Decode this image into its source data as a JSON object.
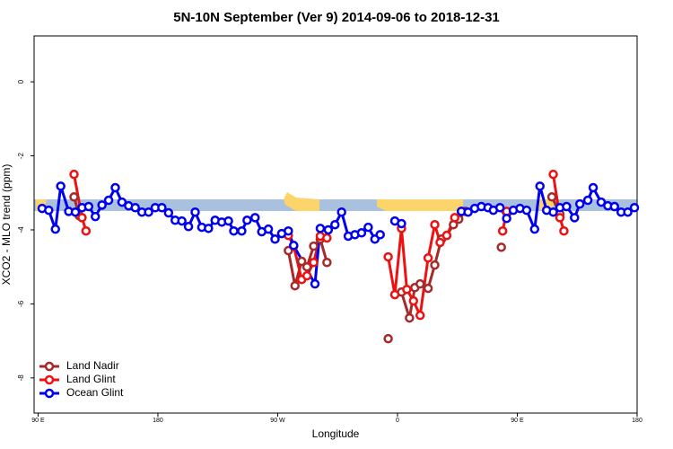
{
  "chart_data": {
    "type": "line",
    "title": "5N-10N September (Ver 9)   2014-09-06 to 2018-12-31",
    "xlabel": "Longitude",
    "ylabel": "XCO2 - MLO trend (ppm)",
    "xlim": [
      87,
      540
    ],
    "ylim": [
      -8.95,
      1.24
    ],
    "xticks": [
      {
        "value": 90,
        "label": "90 E"
      },
      180,
      {
        "value": 270,
        "label": "90 W"
      },
      {
        "value": 360,
        "label": "0"
      },
      {
        "value": 450,
        "label": "90 E"
      },
      {
        "value": 540,
        "label": "180"
      }
    ],
    "yticks": [
      0,
      -2,
      -4,
      -6,
      -8
    ],
    "legend": "bottomleft",
    "series": [
      {
        "name": "Land Nadir",
        "color": "#a52a2a",
        "x": [
          117,
          121,
          null,
          278,
          283,
          288,
          292,
          297,
          302,
          307,
          null,
          353,
          null,
          363,
          369,
          373,
          377,
          383,
          388,
          393,
          397,
          402,
          406,
          411,
          null,
          438,
          null,
          476,
          482
        ],
        "values": [
          -3.11,
          -3.62,
          null,
          -4.56,
          -5.51,
          -4.85,
          -5.0,
          -4.44,
          -4.25,
          -4.88,
          null,
          -6.94,
          null,
          -5.68,
          -6.38,
          -5.56,
          -5.46,
          -5.58,
          -4.95,
          -4.25,
          -4.15,
          -3.86,
          -3.71,
          -3.5,
          null,
          -4.47,
          null,
          -3.11,
          -3.57
        ]
      },
      {
        "name": "Land Glint",
        "color": "#ee1111",
        "x": [
          117,
          123,
          126,
          null,
          278,
          282,
          288,
          292,
          297,
          302,
          307,
          null,
          353,
          358,
          363,
          367,
          372,
          377,
          383,
          388,
          392,
          397,
          403,
          408,
          null,
          439,
          442,
          null,
          477,
          482,
          485
        ],
        "values": [
          -2.5,
          -3.67,
          -4.03,
          null,
          -4.15,
          -4.44,
          -5.34,
          -5.24,
          -4.88,
          -4.17,
          -4.22,
          null,
          -4.73,
          -5.75,
          -3.96,
          -5.61,
          -5.92,
          -6.31,
          -4.76,
          -3.86,
          -4.34,
          -4.15,
          -3.67,
          -3.5,
          null,
          -4.03,
          -3.5,
          null,
          -2.5,
          -3.67,
          -4.03
        ]
      },
      {
        "name": "Ocean Glint",
        "color": "#0000ee",
        "x": [
          93,
          98,
          103,
          107,
          113,
          118,
          123,
          128,
          133,
          138,
          143,
          148,
          153,
          158,
          163,
          168,
          173,
          178,
          183,
          188,
          193,
          198,
          203,
          208,
          213,
          218,
          223,
          228,
          233,
          237,
          243,
          247,
          253,
          258,
          263,
          268,
          273,
          278,
          282,
          298,
          302,
          308,
          313,
          318,
          323,
          328,
          333,
          338,
          343,
          347,
          null,
          358,
          363,
          null,
          408,
          413,
          418,
          423,
          428,
          432,
          437,
          442,
          447,
          452,
          457,
          463,
          467,
          472,
          477,
          482,
          487,
          493,
          497,
          503,
          507,
          513,
          518,
          523,
          528,
          533,
          538
        ],
        "values": [
          -3.42,
          -3.47,
          -3.98,
          -2.82,
          -3.5,
          -3.52,
          -3.4,
          -3.37,
          -3.64,
          -3.33,
          -3.2,
          -2.86,
          -3.25,
          -3.35,
          -3.4,
          -3.52,
          -3.52,
          -3.4,
          -3.4,
          -3.54,
          -3.74,
          -3.76,
          -3.91,
          -3.52,
          -3.93,
          -3.96,
          -3.74,
          -3.79,
          -3.76,
          -4.03,
          -4.03,
          -3.74,
          -3.67,
          -4.05,
          -3.98,
          -4.25,
          -4.1,
          -4.03,
          -4.42,
          -5.46,
          -3.96,
          -4.0,
          -3.86,
          -3.52,
          -4.17,
          -4.13,
          -4.08,
          -3.93,
          -4.25,
          -4.13,
          null,
          -3.76,
          -3.83,
          null,
          -3.5,
          -3.52,
          -3.42,
          -3.37,
          -3.4,
          -3.47,
          -3.4,
          -3.69,
          -3.47,
          -3.42,
          -3.47,
          -3.98,
          -2.82,
          -3.47,
          -3.52,
          -3.4,
          -3.37,
          -3.67,
          -3.3,
          -3.2,
          -2.86,
          -3.25,
          -3.35,
          -3.37,
          -3.52,
          -3.52,
          -3.4
        ]
      }
    ]
  }
}
